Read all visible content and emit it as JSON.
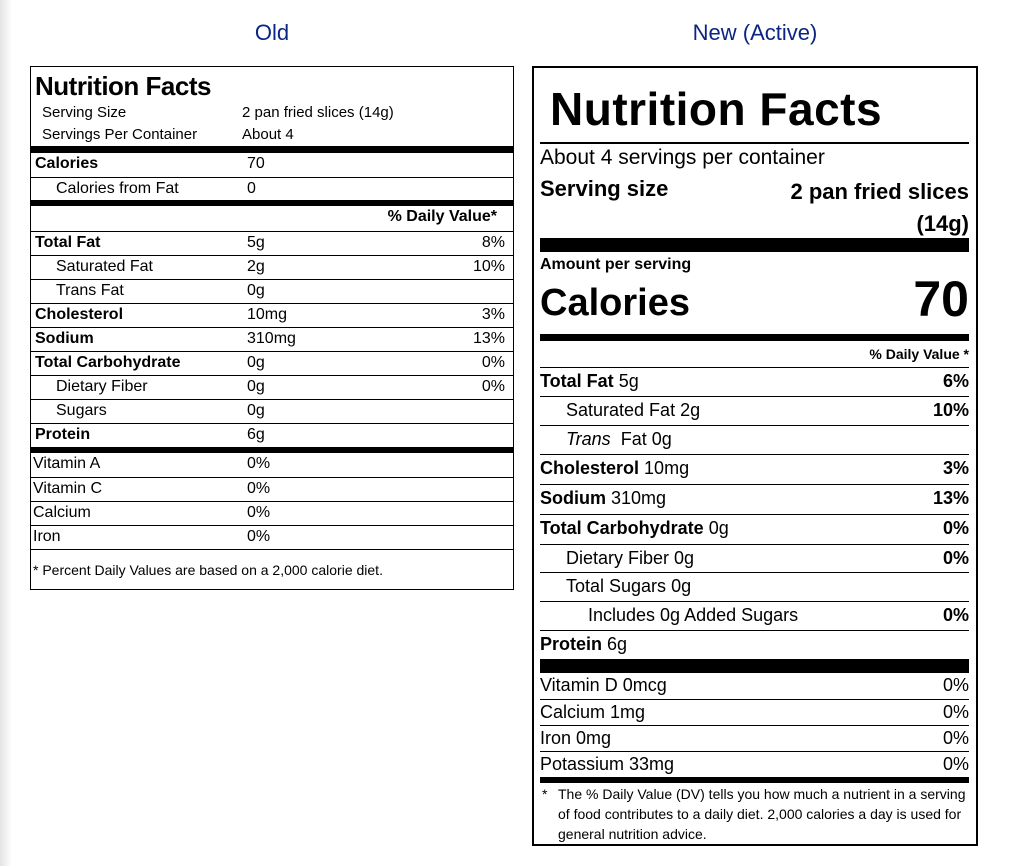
{
  "headers": {
    "old": "Old",
    "new": "New (Active)"
  },
  "old_label": {
    "title": "Nutrition Facts",
    "serving_size_label": "Serving Size",
    "serving_size_value": "2 pan fried slices (14g)",
    "servings_label": "Servings Per Container",
    "servings_value": "About 4",
    "calories_label": "Calories",
    "calories_value": "70",
    "cal_fat_label": "Calories from Fat",
    "cal_fat_value": "0",
    "dv_header": "% Daily Value*",
    "nutrients": [
      {
        "name": "Total Fat",
        "amount": "5g",
        "dv": "8%"
      },
      {
        "name": "Saturated Fat",
        "amount": "2g",
        "dv": "10%"
      },
      {
        "name": "Trans Fat",
        "amount": "0g",
        "dv": ""
      },
      {
        "name": "Cholesterol",
        "amount": "10mg",
        "dv": "3%"
      },
      {
        "name": "Sodium",
        "amount": "310mg",
        "dv": "13%"
      },
      {
        "name": "Total Carbohydrate",
        "amount": "0g",
        "dv": "0%"
      },
      {
        "name": "Dietary Fiber",
        "amount": "0g",
        "dv": "0%"
      },
      {
        "name": "Sugars",
        "amount": "0g",
        "dv": ""
      },
      {
        "name": "Protein",
        "amount": "6g",
        "dv": ""
      }
    ],
    "vitamins": [
      {
        "name": "Vitamin A",
        "value": "0%"
      },
      {
        "name": "Vitamin C",
        "value": "0%"
      },
      {
        "name": "Calcium",
        "value": "0%"
      },
      {
        "name": "Iron",
        "value": "0%"
      }
    ],
    "footnote": "* Percent Daily Values are based on a 2,000 calorie diet."
  },
  "new_label": {
    "title": "Nutrition Facts",
    "servings": "About 4 servings per container",
    "serving_size_label": "Serving size",
    "serving_size_value_1": "2 pan fried slices",
    "serving_size_value_2": "(14g)",
    "amount_per_serving": "Amount per serving",
    "calories_label": "Calories",
    "calories_value": "70",
    "dv_header": "% Daily Value *",
    "nutrients": [
      {
        "name": "Total Fat",
        "amount": "5g",
        "dv": "6%"
      },
      {
        "name": "Saturated Fat",
        "amount": "2g",
        "dv": "10%"
      },
      {
        "name": "Trans",
        "amount": "Fat 0g",
        "dv": ""
      },
      {
        "name": "Cholesterol",
        "amount": "10mg",
        "dv": "3%"
      },
      {
        "name": "Sodium",
        "amount": "310mg",
        "dv": "13%"
      },
      {
        "name": "Total Carbohydrate",
        "amount": "0g",
        "dv": "0%"
      },
      {
        "name": "Dietary Fiber",
        "amount": "0g",
        "dv": "0%"
      },
      {
        "name": "Total Sugars",
        "amount": "0g",
        "dv": ""
      },
      {
        "name": "Includes 0g Added Sugars",
        "amount": "",
        "dv": "0%"
      },
      {
        "name": "Protein",
        "amount": "6g",
        "dv": ""
      }
    ],
    "vitamins": [
      {
        "name": "Vitamin D 0mcg",
        "value": "0%"
      },
      {
        "name": "Calcium 1mg",
        "value": "0%"
      },
      {
        "name": "Iron 0mg",
        "value": "0%"
      },
      {
        "name": "Potassium 33mg",
        "value": "0%"
      }
    ],
    "footnote_star": "*",
    "footnote": "The % Daily Value (DV) tells you how much a nutrient in a serving of food contributes to a daily diet. 2,000 calories a day is used for general nutrition advice."
  }
}
